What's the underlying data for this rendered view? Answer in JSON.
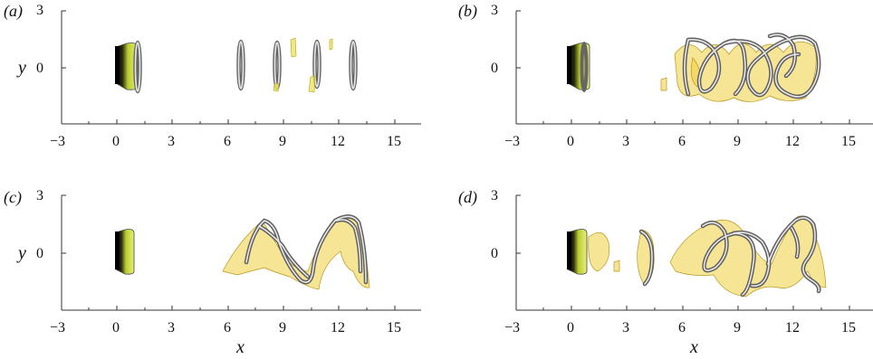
{
  "figure": {
    "panels": [
      {
        "label": "(a)",
        "x_var": "",
        "y_var": "y"
      },
      {
        "label": "(b)",
        "x_var": "",
        "y_var": ""
      },
      {
        "label": "(c)",
        "x_var": "x",
        "y_var": "y"
      },
      {
        "label": "(d)",
        "x_var": "x",
        "y_var": ""
      }
    ],
    "x_ticks": [
      "-3",
      "0",
      "3",
      "6",
      "9",
      "12",
      "15"
    ],
    "y_ticks": [
      "3",
      "0"
    ],
    "colors": {
      "isosurface": "#f2d33a",
      "isosurface_edge": "#b8961a",
      "tube": "#e8e8e8",
      "tube_edge": "#555555",
      "disk_dark": "#111111",
      "disk_light": "#d8e84a"
    }
  }
}
